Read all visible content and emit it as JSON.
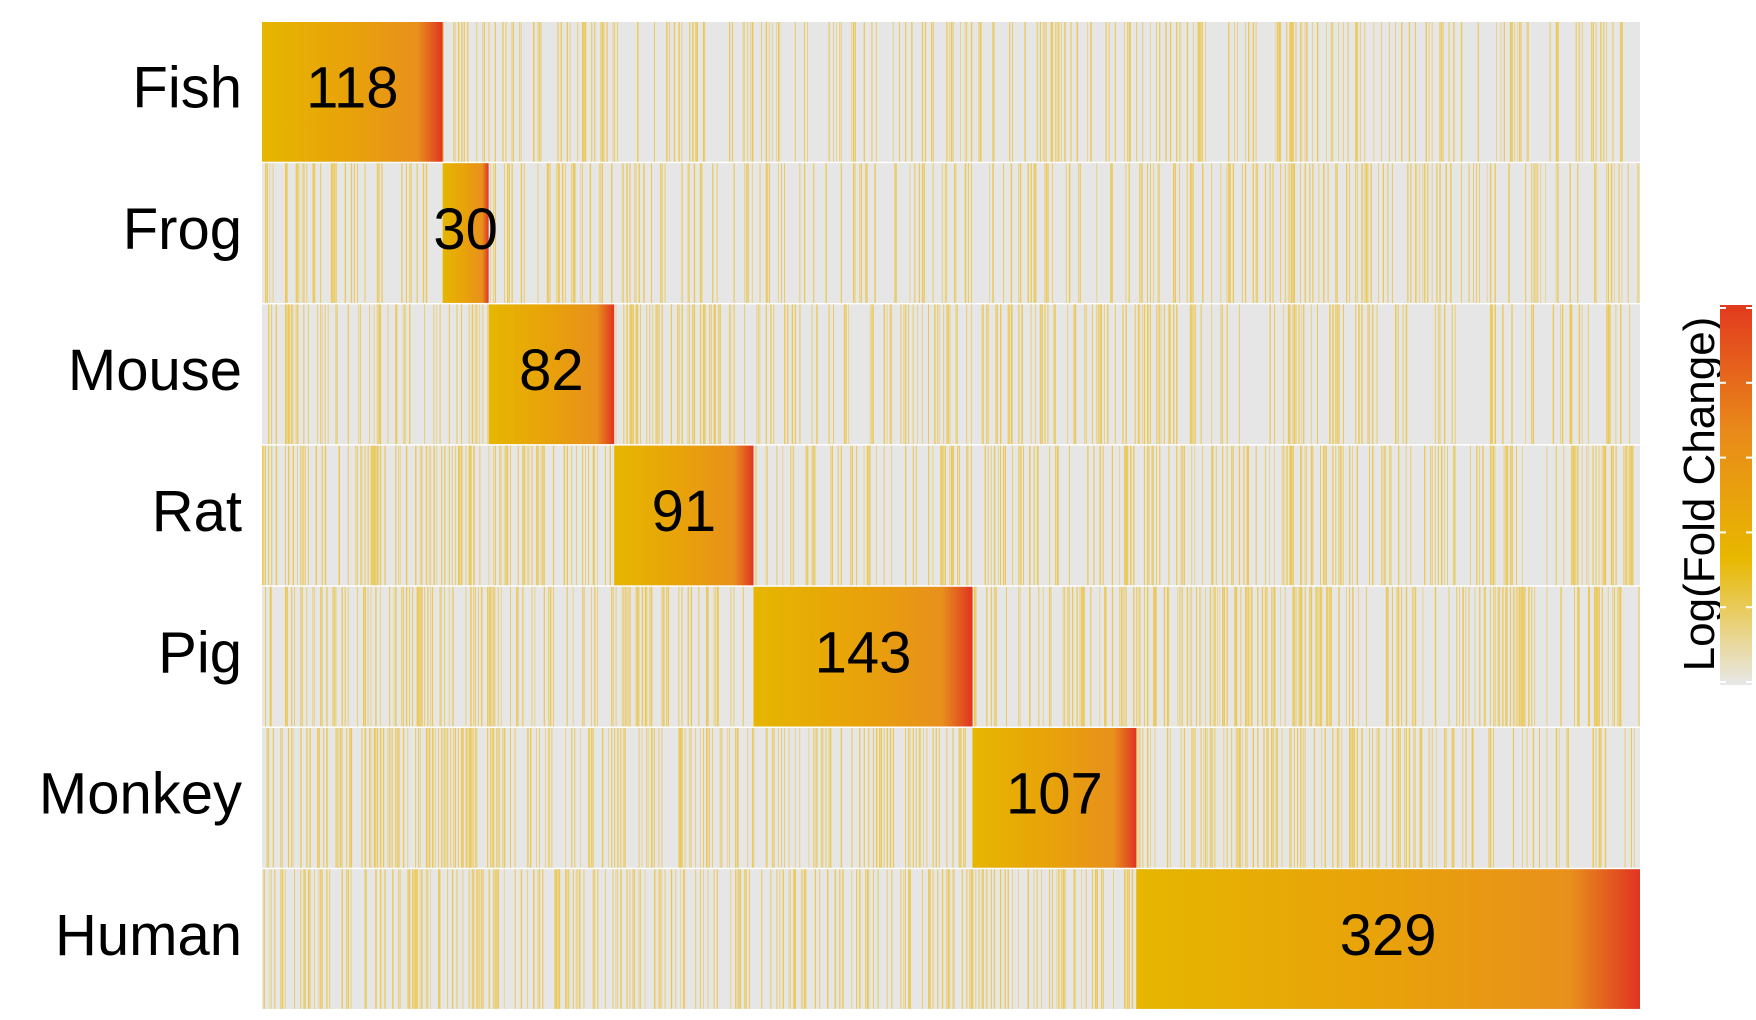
{
  "chart_data": {
    "type": "heatmap",
    "title": "",
    "xlabel": "",
    "ylabel": "",
    "rows": [
      "Fish",
      "Frog",
      "Mouse",
      "Rat",
      "Pig",
      "Monkey",
      "Human"
    ],
    "block_counts": [
      118,
      30,
      82,
      91,
      143,
      107,
      329
    ],
    "block_labels": [
      "118",
      "30",
      "82",
      "91",
      "143",
      "107",
      "329"
    ],
    "total_columns": 900,
    "legend": {
      "title": "Log(Fold Change)",
      "position": "right",
      "tick_count": 6,
      "colors": [
        "#e8e8e8",
        "#e8b800",
        "#e98a1a",
        "#e23a1e"
      ]
    },
    "colors": {
      "background_cell": "#e6e6e6",
      "low_stripe": "#ecc23a",
      "block_low": "#e6b600",
      "block_mid": "#e8901c",
      "block_high": "#e13322"
    }
  }
}
